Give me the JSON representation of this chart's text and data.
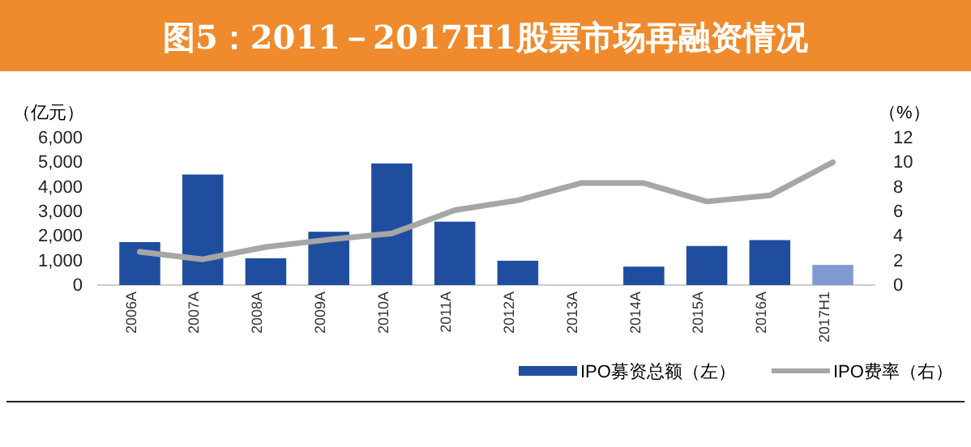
{
  "chart_data": {
    "type": "bar",
    "title": "图5：2011－2017H1股票市场再融资情况",
    "ylabel": "（亿元）",
    "y2label": "（%）",
    "categories": [
      "2006A",
      "2007A",
      "2008A",
      "2009A",
      "2010A",
      "2011A",
      "2012A",
      "2013A",
      "2014A",
      "2015A",
      "2016A",
      "2017H1"
    ],
    "series": [
      {
        "name": "IPO募资总额（左）",
        "color": "#1f4e9f",
        "colors": [
          "#1f4e9f",
          "#1f4e9f",
          "#1f4e9f",
          "#1f4e9f",
          "#1f4e9f",
          "#1f4e9f",
          "#1f4e9f",
          "#1f4e9f",
          "#1f4e9f",
          "#1f4e9f",
          "#1f4e9f",
          "#7f9ad0"
        ],
        "values": [
          1750,
          4500,
          1090,
          2170,
          4950,
          2580,
          990,
          0,
          750,
          1590,
          1830,
          820
        ]
      },
      {
        "name": "IPO费率（右）",
        "type": "line",
        "axis": "y2",
        "color": "#a6a6a6",
        "values": [
          2.7,
          2.1,
          3.1,
          3.7,
          4.2,
          6.1,
          6.9,
          8.3,
          8.3,
          6.8,
          7.3,
          10.0
        ]
      }
    ],
    "ylim": [
      0,
      6000
    ],
    "yticks": [
      0,
      {
        "value": 1000,
        "label": "1,000"
      },
      {
        "value": 2000,
        "label": "2,000"
      },
      {
        "value": 3000,
        "label": "3,000"
      },
      {
        "value": 4000,
        "label": "4,000"
      },
      {
        "value": 5000,
        "label": "5,000"
      },
      {
        "value": 6000,
        "label": "6,000"
      }
    ],
    "y2lim": [
      0,
      12
    ],
    "y2ticks": [
      0,
      2,
      4,
      6,
      8,
      10,
      12
    ],
    "legend": "bottom right",
    "grid": false,
    "marker": "none",
    "line_style": "solid"
  }
}
